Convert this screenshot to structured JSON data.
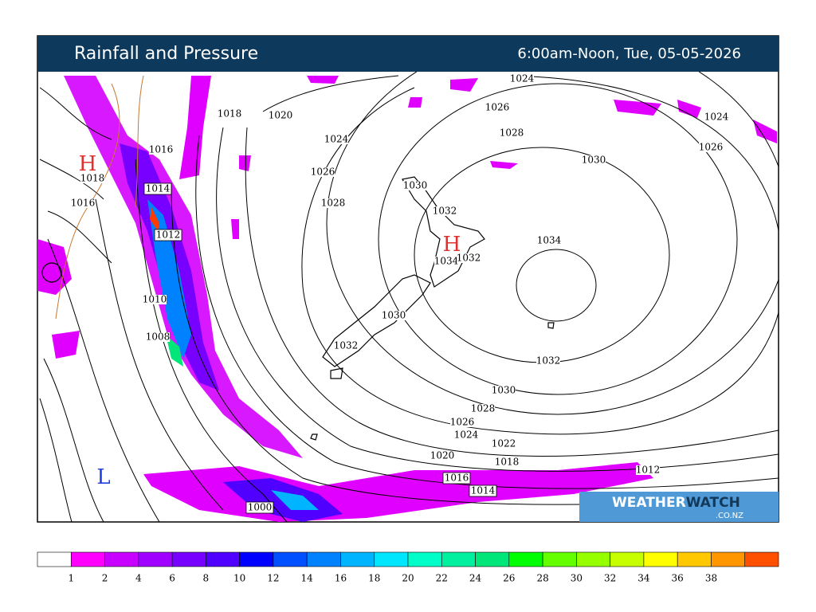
{
  "header": {
    "title": "Rainfall and Pressure",
    "period": "6:00am-Noon, Tue, 05-05-2026"
  },
  "isobar_labels": [
    "1024",
    "1018",
    "1020",
    "1026",
    "1024",
    "1028",
    "1024",
    "1016",
    "1026",
    "1030",
    "1018",
    "1026",
    "1014",
    "1030",
    "1016",
    "1028",
    "1032",
    "1012",
    "1034",
    "1034",
    "1032",
    "1010",
    "1030",
    "1008",
    "1032",
    "1032",
    "1030",
    "1028",
    "1026",
    "1024",
    "1022",
    "1020",
    "1018",
    "1016",
    "1014",
    "1012",
    "1000"
  ],
  "pressure_centers": [
    "H",
    "H",
    "L"
  ],
  "legend": {
    "colors": [
      "#ffffff",
      "#ff00ff",
      "#c800ff",
      "#a000ff",
      "#7800ff",
      "#5000ff",
      "#0000ff",
      "#0050ff",
      "#0082ff",
      "#00b4ff",
      "#00e6ff",
      "#00ffc8",
      "#00f0a0",
      "#00e678",
      "#00ff00",
      "#64ff00",
      "#96ff00",
      "#c8ff00",
      "#ffff00",
      "#ffc800",
      "#ff9600",
      "#ff5000"
    ],
    "labels": [
      "1",
      "2",
      "4",
      "6",
      "8",
      "10",
      "12",
      "14",
      "16",
      "18",
      "20",
      "22",
      "24",
      "26",
      "28",
      "30",
      "32",
      "34",
      "36",
      "38"
    ]
  },
  "logo": {
    "parts": [
      "WEATHER",
      "WATCH"
    ],
    "domain": ".CO.NZ"
  }
}
